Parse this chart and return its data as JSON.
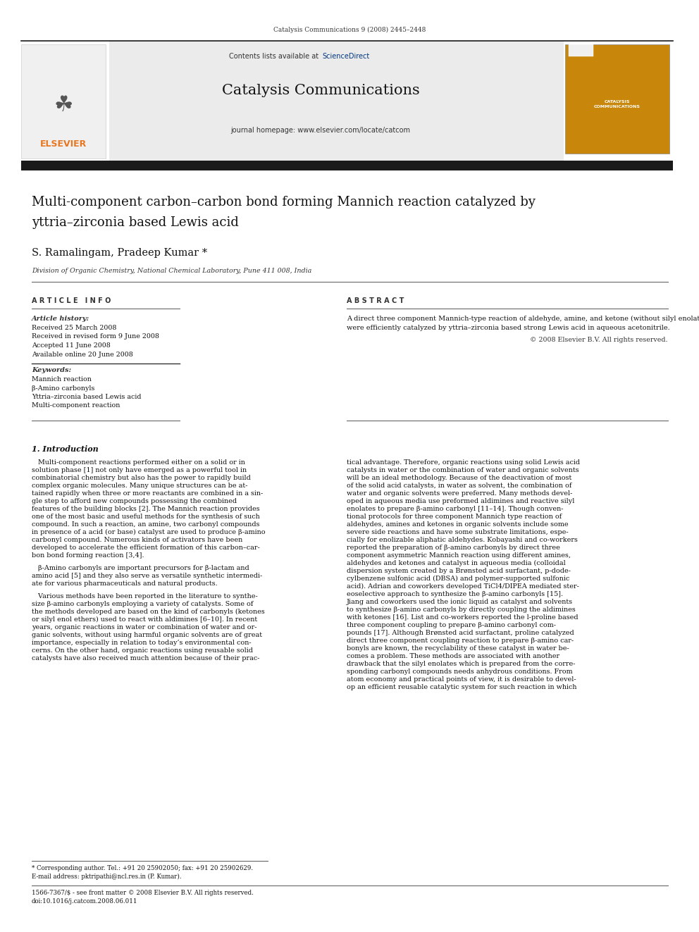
{
  "bg_color": "#ffffff",
  "page_width": 9.92,
  "page_height": 13.23,
  "journal_ref": "Catalysis Communications 9 (2008) 2445–2448",
  "elsevier_text": "ELSEVIER",
  "elsevier_color": "#e87722",
  "contents_text": "Contents lists available at ",
  "sciencedirect_text": "ScienceDirect",
  "sciencedirect_color": "#003580",
  "journal_title": "Catalysis Communications",
  "journal_homepage": "journal homepage: www.elsevier.com/locate/catcom",
  "article_title_line1": "Multi-component carbon–carbon bond forming Mannich reaction catalyzed by",
  "article_title_line2": "yttria–zirconia based Lewis acid",
  "authors": "S. Ramalingam, Pradeep Kumar *",
  "affiliation": "Division of Organic Chemistry, National Chemical Laboratory, Pune 411 008, India",
  "article_info_header": "A R T I C L E   I N F O",
  "abstract_header": "A B S T R A C T",
  "article_history_label": "Article history:",
  "received": "Received 25 March 2008",
  "revised": "Received in revised form 9 June 2008",
  "accepted": "Accepted 11 June 2008",
  "available": "Available online 20 June 2008",
  "keywords_label": "Keywords:",
  "keyword1": "Mannich reaction",
  "keyword2": "β-Amino carbonyls",
  "keyword3": "Yttria–zirconia based Lewis acid",
  "keyword4": "Multi-component reaction",
  "abstract_line1": "A direct three component Mannich-type reaction of aldehyde, amine, and ketone (without silyl enolates)",
  "abstract_line2": "were efficiently catalyzed by yttria–zirconia based strong Lewis acid in aqueous acetonitrile.",
  "copyright_text": "© 2008 Elsevier B.V. All rights reserved.",
  "intro_header": "1. Introduction",
  "intro_col1_lines": [
    "   Multi-component reactions performed either on a solid or in",
    "solution phase [1] not only have emerged as a powerful tool in",
    "combinatorial chemistry but also has the power to rapidly build",
    "complex organic molecules. Many unique structures can be at-",
    "tained rapidly when three or more reactants are combined in a sin-",
    "gle step to afford new compounds possessing the combined",
    "features of the building blocks [2]. The Mannich reaction provides",
    "one of the most basic and useful methods for the synthesis of such",
    "compound. In such a reaction, an amine, two carbonyl compounds",
    "in presence of a acid (or base) catalyst are used to produce β-amino",
    "carbonyl compound. Numerous kinds of activators have been",
    "developed to accelerate the efficient formation of this carbon–car-",
    "bon bond forming reaction [3,4]."
  ],
  "intro_col1_para2": [
    "   β-Amino carbonyls are important precursors for β-lactam and",
    "amino acid [5] and they also serve as versatile synthetic intermedi-",
    "ate for various pharmaceuticals and natural products."
  ],
  "intro_col1_para3": [
    "   Various methods have been reported in the literature to synthe-",
    "size β-amino carbonyls employing a variety of catalysts. Some of",
    "the methods developed are based on the kind of carbonyls (ketones",
    "or silyl enol ethers) used to react with aldimines [6–10]. In recent",
    "years, organic reactions in water or combination of water and or-",
    "ganic solvents, without using harmful organic solvents are of great",
    "importance, especially in relation to today’s environmental con-",
    "cerns. On the other hand, organic reactions using reusable solid",
    "catalysts have also received much attention because of their prac-"
  ],
  "intro_col2_lines": [
    "tical advantage. Therefore, organic reactions using solid Lewis acid",
    "catalysts in water or the combination of water and organic solvents",
    "will be an ideal methodology. Because of the deactivation of most",
    "of the solid acid catalysts, in water as solvent, the combination of",
    "water and organic solvents were preferred. Many methods devel-",
    "oped in aqueous media use preformed aldimines and reactive silyl",
    "enolates to prepare β-amino carbonyl [11–14]. Though conven-",
    "tional protocols for three component Mannich type reaction of",
    "aldehydes, amines and ketones in organic solvents include some",
    "severe side reactions and have some substrate limitations, espe-",
    "cially for enolizable aliphatic aldehydes. Kobayashi and co-workers",
    "reported the preparation of β-amino carbonyls by direct three",
    "component asymmetric Mannich reaction using different amines,",
    "aldehydes and ketones and catalyst in aqueous media (colloidal",
    "dispersion system created by a Brønsted acid surfactant, p-dode-",
    "cylbenzene sulfonic acid (DBSA) and polymer-supported sulfonic",
    "acid). Adrian and coworkers developed TiCl4/DIPEA mediated ster-",
    "eoselective approach to synthesize the β-amino carbonyls [15].",
    "Jiang and coworkers used the ionic liquid as catalyst and solvents",
    "to synthesize β-amino carbonyls by directly coupling the aldimines",
    "with ketones [16]. List and co-workers reported the l-proline based",
    "three component coupling to prepare β-amino carbonyl com-",
    "pounds [17]. Although Brønsted acid surfactant, proline catalyzed",
    "direct three component coupling reaction to prepare β-amino car-",
    "bonyls are known, the recyclability of these catalyst in water be-",
    "comes a problem. These methods are associated with another",
    "drawback that the silyl enolates which is prepared from the corre-",
    "sponding carbonyl compounds needs anhydrous conditions. From",
    "atom economy and practical points of view, it is desirable to devel-",
    "op an efficient reusable catalytic system for such reaction in which"
  ],
  "footnote_star": "* Corresponding author. Tel.: +91 20 25902050; fax: +91 20 25902629.",
  "footnote_email": "E-mail address: pktripathi@ncl.res.in (P. Kumar).",
  "footnote_issn": "1566-7367/$ - see front matter © 2008 Elsevier B.V. All rights reserved.",
  "footnote_doi": "doi:10.1016/j.catcom.2008.06.011"
}
